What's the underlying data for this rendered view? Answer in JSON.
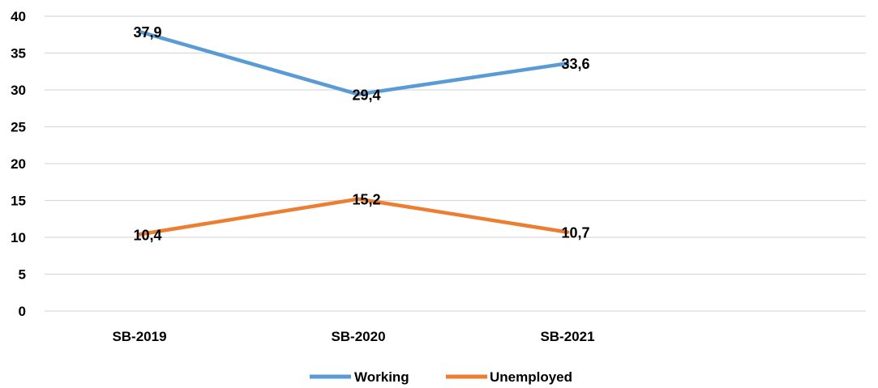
{
  "chart_data": {
    "type": "line",
    "categories": [
      "SB-2019",
      "SB-2020",
      "SB-2021"
    ],
    "series": [
      {
        "name": "Working",
        "values": [
          37.9,
          29.4,
          33.6
        ],
        "labels": [
          "37,9",
          "29,4",
          "33,6"
        ],
        "color": "#5b9bd5"
      },
      {
        "name": "Unemployed",
        "values": [
          10.4,
          15.2,
          10.7
        ],
        "labels": [
          "10,4",
          "15,2",
          "10,7"
        ],
        "color": "#ed7d31"
      }
    ],
    "ylim": [
      0,
      40
    ],
    "yticks": [
      0,
      5,
      10,
      15,
      20,
      25,
      30,
      35,
      40
    ],
    "title": "",
    "xlabel": "",
    "ylabel": "",
    "grid": true,
    "gridColor": "#d9d9d9",
    "legend": "bottom-center"
  }
}
